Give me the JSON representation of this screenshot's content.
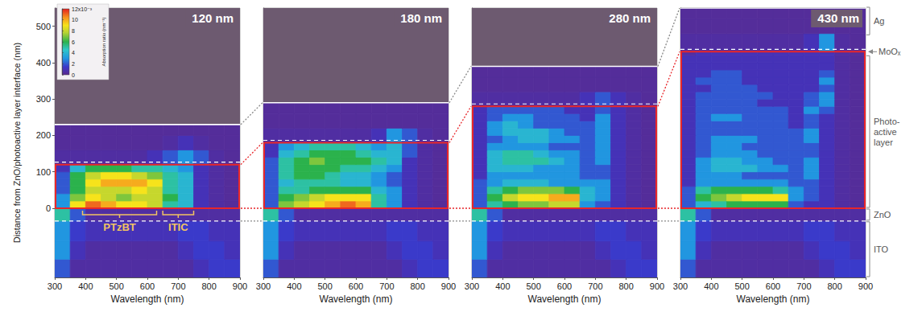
{
  "chart_data": [
    {
      "type": "heatmap",
      "title": "120 nm",
      "x_label": "Wavelength (nm)",
      "y_label": "Distance from ZnO/photoactive layer interface (nm)",
      "xlim": [
        300,
        900
      ],
      "xticks": [
        300,
        400,
        500,
        600,
        700,
        800,
        900
      ],
      "ylim": [
        -190,
        550
      ],
      "yticks": [
        0,
        100,
        200,
        300,
        400,
        500
      ],
      "layers": {
        "zno_bottom": -35,
        "active_top": 120,
        "ag_bottom": 230
      },
      "x_edges": [
        300,
        350,
        400,
        450,
        500,
        550,
        600,
        650,
        700,
        750,
        800,
        850,
        900
      ],
      "y_edges": [
        -190,
        -140,
        -90,
        -35,
        0,
        20,
        40,
        60,
        80,
        100,
        120,
        160,
        200,
        230
      ],
      "cells": [
        [
          2,
          0.5,
          0.5,
          0.5,
          0.5,
          0.5,
          0.5,
          0.5,
          0.5,
          1,
          1.5,
          1.5
        ],
        [
          3,
          1,
          0.5,
          0.5,
          0.5,
          0.5,
          0.5,
          0.5,
          1,
          1.5,
          1.5,
          1
        ],
        [
          3,
          1.5,
          1,
          1,
          1,
          1,
          1,
          1,
          1.5,
          1.5,
          1,
          1
        ],
        [
          5,
          2,
          0.5,
          0.5,
          0.5,
          0.5,
          0.5,
          0.5,
          0.5,
          0.5,
          0.5,
          0.5
        ],
        [
          3,
          9,
          11,
          10,
          9,
          9,
          8,
          5,
          4,
          1,
          0.5,
          0.3
        ],
        [
          3,
          7,
          9,
          8,
          7,
          8,
          8,
          6,
          4,
          1,
          0.5,
          0.3
        ],
        [
          2,
          6,
          8,
          8,
          8,
          9,
          8,
          5,
          4,
          1,
          0.5,
          0.3
        ],
        [
          2,
          6,
          9,
          10,
          10,
          10,
          9,
          5,
          4,
          1,
          0.5,
          0.3
        ],
        [
          2,
          6,
          8,
          9,
          9,
          8,
          7,
          5,
          4,
          1,
          0.5,
          0.3
        ],
        [
          1,
          4,
          6,
          6,
          6,
          5,
          5,
          4,
          3,
          1,
          0.5,
          0.3
        ],
        [
          0.5,
          0.5,
          0.5,
          0.5,
          0.5,
          0.5,
          1,
          2,
          3,
          2,
          0.5,
          0.3
        ],
        [
          0.3,
          0.3,
          0.3,
          0.3,
          0.3,
          0.3,
          0.3,
          0.5,
          1,
          0.5,
          0.3,
          0.3
        ],
        [
          0.3,
          0.3,
          0.3,
          0.3,
          0.3,
          0.3,
          0.3,
          0.3,
          0.3,
          0.3,
          0.3,
          0.3
        ]
      ],
      "colorbar": {
        "label": "Absorption ratio (nm⁻¹)",
        "range": [
          0,
          12
        ],
        "ticks": [
          0,
          2,
          4,
          6,
          8,
          10,
          {
            "value": 12,
            "label": "12x10⁻³"
          }
        ]
      },
      "annotations": [
        {
          "text": "PTzBT",
          "x": [
            390,
            630
          ]
        },
        {
          "text": "ITIC",
          "x": [
            650,
            750
          ]
        }
      ]
    },
    {
      "type": "heatmap",
      "title": "180 nm",
      "x_label": "Wavelength (nm)",
      "xlim": [
        300,
        900
      ],
      "xticks": [
        300,
        400,
        500,
        600,
        700,
        800,
        900
      ],
      "ylim": [
        -190,
        550
      ],
      "tick_labels": "x",
      "layers": {
        "zno_bottom": -35,
        "active_top": 180,
        "ag_bottom": 290
      },
      "x_edges": [
        300,
        350,
        400,
        450,
        500,
        550,
        600,
        650,
        700,
        750,
        800,
        850,
        900
      ],
      "y_edges": [
        -190,
        -140,
        -90,
        -35,
        0,
        20,
        40,
        60,
        80,
        100,
        120,
        140,
        160,
        180,
        220,
        260,
        290
      ],
      "cells": [
        [
          2,
          0.5,
          0.5,
          0.5,
          0.5,
          0.5,
          0.5,
          0.5,
          0.5,
          1,
          1.5,
          1.5
        ],
        [
          3,
          1,
          0.5,
          0.5,
          0.5,
          0.5,
          0.5,
          0.5,
          1,
          1.5,
          1.5,
          1
        ],
        [
          3,
          1.5,
          1,
          1,
          1,
          1,
          1,
          1,
          1.5,
          1.5,
          1,
          1
        ],
        [
          5,
          2,
          0.5,
          0.5,
          0.5,
          0.5,
          0.5,
          0.5,
          0.5,
          0.5,
          0.5,
          0.5
        ],
        [
          2,
          7,
          8,
          9,
          10,
          11,
          10,
          5,
          3,
          1,
          0.5,
          0.3
        ],
        [
          2,
          6,
          7,
          8,
          9,
          9,
          9,
          5,
          3,
          1,
          0.5,
          0.3
        ],
        [
          2,
          5,
          5,
          6,
          6,
          6,
          6,
          4,
          3,
          1,
          0.5,
          0.3
        ],
        [
          2,
          4,
          5,
          5,
          5,
          4,
          4,
          3,
          2,
          1,
          0.5,
          0.3
        ],
        [
          2,
          5,
          6,
          6,
          5,
          4,
          4,
          3,
          2,
          1,
          0.5,
          0.3
        ],
        [
          2,
          5,
          6,
          6,
          6,
          5,
          5,
          4,
          3,
          1,
          0.5,
          0.3
        ],
        [
          2,
          5,
          6,
          7,
          6,
          6,
          6,
          5,
          4,
          1,
          0.5,
          0.3
        ],
        [
          1,
          4,
          5,
          6,
          6,
          6,
          5,
          4,
          4,
          2,
          0.5,
          0.3
        ],
        [
          1,
          3,
          4,
          5,
          5,
          5,
          4,
          3,
          4,
          2,
          0.5,
          0.3
        ],
        [
          0.5,
          0.5,
          0.5,
          0.5,
          0.5,
          0.5,
          0.5,
          1,
          3,
          2,
          0.5,
          0.3
        ],
        [
          0.3,
          0.3,
          0.3,
          0.3,
          0.3,
          0.3,
          0.3,
          0.3,
          0.3,
          0.3,
          0.3,
          0.3
        ],
        [
          0.3,
          0.3,
          0.3,
          0.3,
          0.3,
          0.3,
          0.3,
          0.3,
          0.3,
          0.3,
          0.3,
          0.3
        ]
      ]
    },
    {
      "type": "heatmap",
      "title": "280 nm",
      "x_label": "Wavelength (nm)",
      "xlim": [
        300,
        900
      ],
      "xticks": [
        300,
        400,
        500,
        600,
        700,
        800,
        900
      ],
      "ylim": [
        -190,
        550
      ],
      "tick_labels": "x",
      "layers": {
        "zno_bottom": -35,
        "active_top": 280,
        "ag_bottom": 390
      },
      "x_edges": [
        300,
        350,
        400,
        450,
        500,
        550,
        600,
        650,
        700,
        750,
        800,
        850,
        900
      ],
      "y_edges": [
        -190,
        -140,
        -90,
        -35,
        0,
        20,
        40,
        60,
        80,
        100,
        120,
        140,
        160,
        180,
        200,
        220,
        240,
        260,
        280,
        320,
        360,
        390
      ],
      "cells": [
        [
          2,
          0.5,
          0.5,
          0.5,
          0.5,
          0.5,
          0.5,
          0.5,
          0.5,
          1,
          1.5,
          1.5
        ],
        [
          3,
          1,
          0.5,
          0.5,
          0.5,
          0.5,
          0.5,
          0.5,
          1,
          1.5,
          1.5,
          1
        ],
        [
          3,
          1.5,
          1,
          1,
          1,
          1,
          1,
          1,
          1.5,
          1.5,
          1,
          1
        ],
        [
          5,
          2,
          0.5,
          0.5,
          0.5,
          0.5,
          0.5,
          0.5,
          0.5,
          0.5,
          0.5,
          0.5
        ],
        [
          2,
          5,
          6,
          7,
          7,
          8,
          8,
          3,
          2,
          1,
          0.5,
          0.3
        ],
        [
          2,
          6,
          8,
          9,
          9,
          10,
          10,
          4,
          3,
          1,
          0.5,
          0.3
        ],
        [
          2,
          5,
          6,
          7,
          7,
          7,
          6,
          4,
          3,
          1,
          0.5,
          0.3
        ],
        [
          2,
          3,
          4,
          4,
          4,
          3,
          3,
          3,
          3,
          1,
          0.5,
          0.3
        ],
        [
          1,
          3,
          3,
          3,
          3,
          3,
          3,
          2,
          2,
          1,
          0.5,
          0.3
        ],
        [
          1,
          4,
          4,
          4,
          3,
          3,
          3,
          2,
          2,
          1,
          0.5,
          0.3
        ],
        [
          1,
          4,
          5,
          5,
          5,
          4,
          3,
          2,
          3,
          1,
          0.5,
          0.3
        ],
        [
          1,
          4,
          5,
          5,
          4,
          3,
          3,
          2,
          3,
          1,
          0.5,
          0.3
        ],
        [
          1,
          3,
          3,
          3,
          3,
          2,
          2,
          2,
          3,
          1,
          0.5,
          0.3
        ],
        [
          1,
          2,
          3,
          4,
          4,
          3,
          3,
          2,
          3,
          1,
          0.5,
          0.3
        ],
        [
          1,
          3,
          4,
          4,
          4,
          3,
          2,
          2,
          3,
          1,
          0.5,
          0.3
        ],
        [
          1,
          3,
          4,
          3,
          2,
          2,
          2,
          2,
          3,
          1,
          0.5,
          0.3
        ],
        [
          1,
          2,
          3,
          3,
          2,
          2,
          2,
          1,
          3,
          1,
          0.5,
          0.3
        ],
        [
          1,
          2,
          2,
          2,
          2,
          2,
          1,
          1,
          2,
          1,
          0.5,
          0.3
        ],
        [
          0.5,
          0.5,
          0.5,
          0.5,
          0.5,
          0.5,
          0.5,
          1,
          2,
          1,
          0.5,
          0.3
        ],
        [
          0.3,
          0.3,
          0.3,
          0.3,
          0.3,
          0.3,
          0.3,
          0.3,
          0.3,
          0.3,
          0.3,
          0.3
        ],
        [
          0.3,
          0.3,
          0.3,
          0.3,
          0.3,
          0.3,
          0.3,
          0.3,
          0.3,
          0.3,
          0.3,
          0.3
        ]
      ]
    },
    {
      "type": "heatmap",
      "title": "430 nm",
      "x_label": "Wavelength (nm)",
      "xlim": [
        300,
        900
      ],
      "xticks": [
        300,
        400,
        500,
        600,
        700,
        800,
        900
      ],
      "ylim": [
        -190,
        550
      ],
      "tick_labels": "x",
      "layers": {
        "zno_bottom": -35,
        "active_top": 430,
        "ag_bottom": 550
      },
      "x_edges": [
        300,
        350,
        400,
        450,
        500,
        550,
        600,
        650,
        700,
        750,
        800,
        850,
        900
      ],
      "y_edges": [
        -190,
        -140,
        -90,
        -35,
        0,
        20,
        40,
        60,
        80,
        100,
        120,
        140,
        160,
        180,
        200,
        220,
        240,
        260,
        280,
        300,
        320,
        340,
        360,
        380,
        400,
        420,
        430,
        480,
        520,
        550
      ],
      "cells": [
        [
          2,
          0.5,
          0.5,
          0.5,
          0.5,
          0.5,
          0.5,
          0.5,
          0.5,
          1,
          1.5,
          1.5
        ],
        [
          3,
          1,
          0.5,
          0.5,
          0.5,
          0.5,
          0.5,
          0.5,
          1,
          1.5,
          1.5,
          1
        ],
        [
          3,
          1.5,
          1,
          1,
          1,
          1,
          1,
          1,
          1.5,
          1.5,
          1,
          1
        ],
        [
          5,
          2,
          0.5,
          0.5,
          0.5,
          0.5,
          0.5,
          0.5,
          0.5,
          0.5,
          0.5,
          0.5
        ],
        [
          2,
          4,
          5,
          6,
          6,
          6,
          6,
          2,
          1,
          1,
          0.5,
          0.3
        ],
        [
          2,
          6,
          7,
          8,
          9,
          9,
          9,
          3,
          2,
          1,
          0.5,
          0.3
        ],
        [
          2,
          5,
          6,
          6,
          6,
          6,
          5,
          3,
          2,
          1,
          0.5,
          0.3
        ],
        [
          1,
          3,
          3,
          3,
          3,
          3,
          3,
          2,
          2,
          1,
          0.5,
          0.3
        ],
        [
          1,
          3,
          3,
          3,
          2,
          2,
          2,
          2,
          3,
          1,
          0.5,
          0.3
        ],
        [
          1,
          3,
          4,
          4,
          4,
          3,
          3,
          2,
          3,
          1,
          0.5,
          0.3
        ],
        [
          1,
          3,
          4,
          4,
          3,
          3,
          2,
          2,
          3,
          1,
          0.5,
          0.3
        ],
        [
          1,
          2,
          3,
          3,
          3,
          2,
          2,
          2,
          2,
          1,
          0.5,
          0.3
        ],
        [
          1,
          2,
          3,
          3,
          2,
          2,
          2,
          2,
          2,
          1,
          0.5,
          0.3
        ],
        [
          1,
          2,
          3,
          3,
          3,
          2,
          2,
          2,
          3,
          1,
          0.5,
          0.3
        ],
        [
          1,
          2,
          2,
          2,
          2,
          2,
          2,
          2,
          3,
          1,
          0.5,
          0.3
        ],
        [
          1,
          2,
          2,
          2,
          2,
          2,
          2,
          1,
          2,
          1,
          0.5,
          0.3
        ],
        [
          1,
          2,
          3,
          3,
          2,
          2,
          2,
          1,
          2,
          1,
          0.5,
          0.3
        ],
        [
          1,
          2,
          2,
          2,
          2,
          2,
          2,
          1,
          3,
          2,
          0.5,
          0.3
        ],
        [
          1,
          2,
          2,
          2,
          2,
          1,
          1,
          1,
          2,
          3,
          0.5,
          0.3
        ],
        [
          1,
          2,
          2,
          2,
          2,
          2,
          1,
          1,
          2,
          3,
          0.5,
          0.3
        ],
        [
          1,
          1,
          2,
          2,
          2,
          1,
          1,
          1,
          1,
          2,
          0.5,
          0.3
        ],
        [
          1,
          2,
          2,
          2,
          1,
          1,
          1,
          1,
          1,
          3,
          0.5,
          0.3
        ],
        [
          1,
          1,
          2,
          2,
          1,
          1,
          1,
          1,
          1,
          2,
          0.5,
          0.3
        ],
        [
          1,
          1,
          1,
          1,
          1,
          1,
          1,
          1,
          1,
          1,
          0.5,
          0.3
        ],
        [
          1,
          1,
          1,
          1,
          1,
          1,
          1,
          1,
          1,
          1,
          0.5,
          0.3
        ],
        [
          0.5,
          1,
          1,
          1,
          1,
          1,
          1,
          1,
          1,
          1,
          0.5,
          0.3
        ],
        [
          0.5,
          0.5,
          0.5,
          0.5,
          0.5,
          0.5,
          0.5,
          0.5,
          1,
          3,
          0.5,
          0.3
        ],
        [
          0.3,
          0.3,
          0.3,
          0.3,
          0.3,
          0.3,
          0.3,
          0.3,
          0.3,
          0.3,
          0.3,
          0.3
        ],
        [
          0.3,
          0.3,
          0.3,
          0.3,
          0.3,
          0.3,
          0.3,
          0.3,
          0.3,
          0.3,
          0.3,
          0.3
        ]
      ],
      "layer_labels": {
        "ag": "Ag",
        "moox": "MoOₓ",
        "active": "Photo-active layer",
        "zno": "ZnO",
        "ito": "ITO"
      }
    }
  ]
}
